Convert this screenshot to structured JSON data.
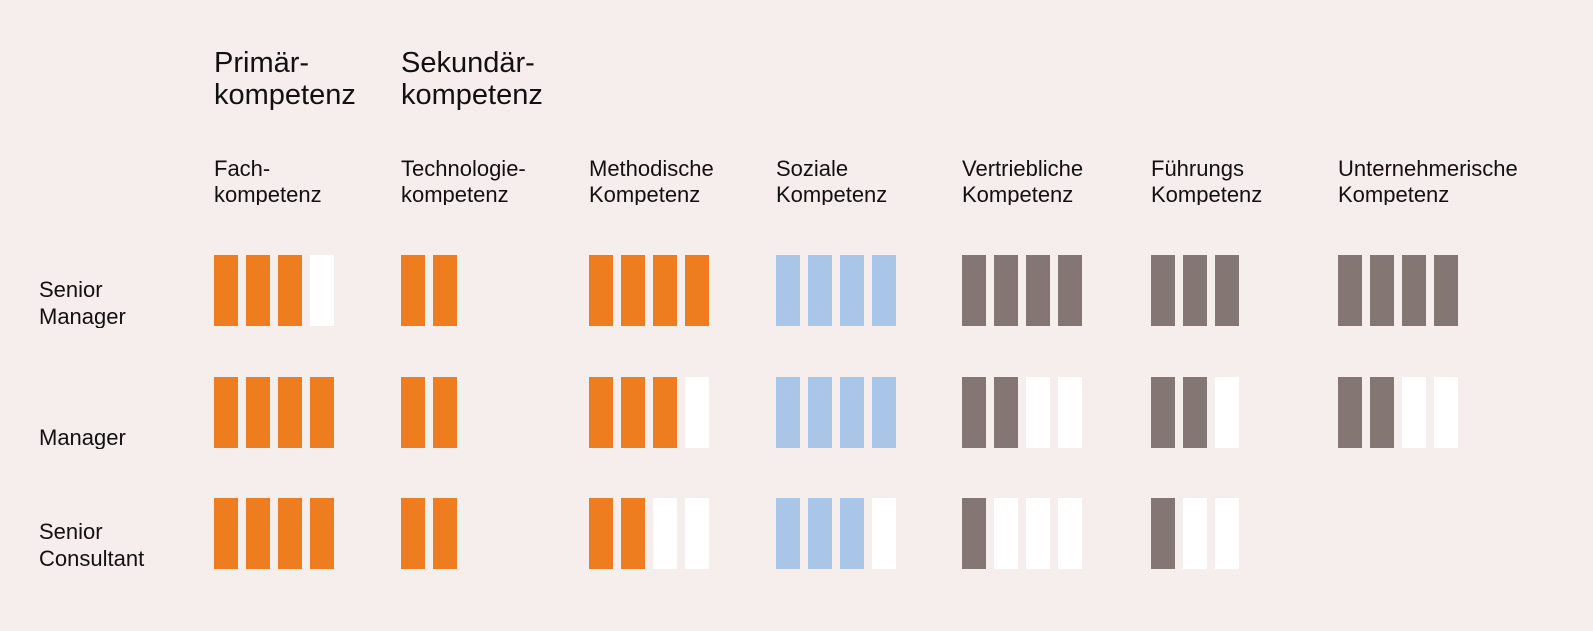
{
  "chart_data": {
    "type": "table",
    "groups": [
      {
        "label": "Primär-\nkompetenz",
        "column": 0
      },
      {
        "label": "Sekundär-\nkompetenz",
        "column": 1
      }
    ],
    "columns": [
      {
        "label": "Fach-\nkompetenz",
        "color": "#ee7d1f"
      },
      {
        "label": "Technologie-\nkompetenz",
        "color": "#ee7d1f"
      },
      {
        "label": "Methodische\nKompetenz",
        "color": "#ee7d1f"
      },
      {
        "label": "Soziale\nKompetenz",
        "color": "#a9c6e8"
      },
      {
        "label": "Vertriebliche\nKompetenz",
        "color": "#837673"
      },
      {
        "label": "Führungs\nKompetenz",
        "color": "#837673"
      },
      {
        "label": "Unternehmerische\nKompetenz",
        "color": "#837673"
      }
    ],
    "rows": [
      {
        "label": "Senior\nManager"
      },
      {
        "label": "Manager"
      },
      {
        "label": "Senior\nConsultant"
      }
    ],
    "levels": [
      {
        "row": "Senior Manager",
        "values": [
          [
            3,
            4
          ],
          [
            2,
            2
          ],
          [
            4,
            4
          ],
          [
            4,
            4
          ],
          [
            4,
            4
          ],
          [
            3,
            3
          ],
          [
            4,
            4
          ]
        ]
      },
      {
        "row": "Manager",
        "values": [
          [
            4,
            4
          ],
          [
            2,
            2
          ],
          [
            3,
            4
          ],
          [
            4,
            4
          ],
          [
            2,
            4
          ],
          [
            2,
            3
          ],
          [
            2,
            4
          ]
        ]
      },
      {
        "row": "Senior Consultant",
        "values": [
          [
            4,
            4
          ],
          [
            2,
            2
          ],
          [
            2,
            4
          ],
          [
            3,
            4
          ],
          [
            1,
            4
          ],
          [
            1,
            3
          ],
          null
        ]
      }
    ],
    "empty_color": "#ffffff"
  }
}
